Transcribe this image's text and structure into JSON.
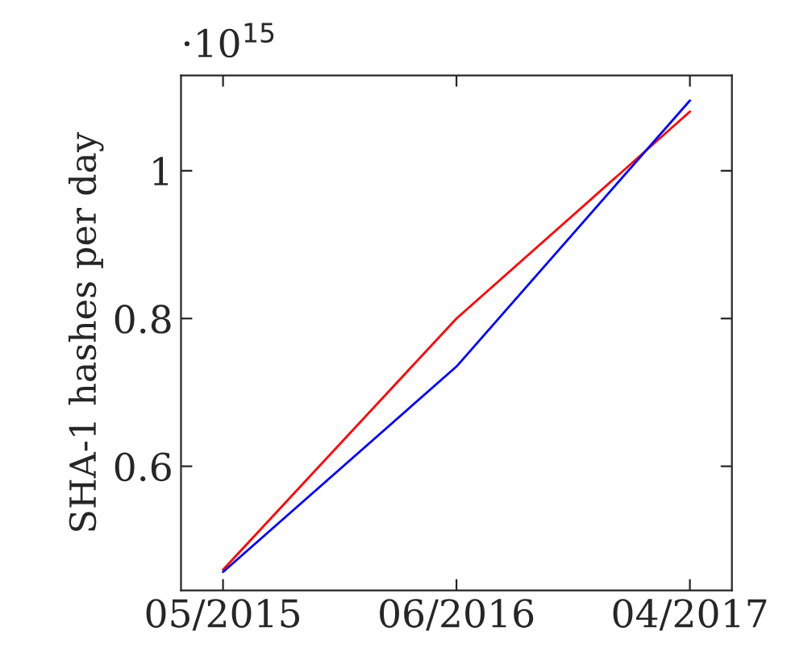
{
  "chart_data": {
    "type": "line",
    "ylabel": "SHA-1 hashes per day",
    "categories": [
      "05/2015",
      "06/2016",
      "04/2017"
    ],
    "series": [
      {
        "color": "#ff0000",
        "values": [
          0.46,
          0.8,
          1.08
        ]
      },
      {
        "color": "#0000ff",
        "values": [
          0.457,
          0.735,
          1.095
        ]
      }
    ],
    "ylim": [
      0.432,
      1.129
    ],
    "yticks": [
      0.6,
      0.8,
      1
    ],
    "annotations": [
      "·10$^{15}$"
    ],
    "grid": false,
    "legend": false,
    "marker": "none",
    "line_style": "solid"
  }
}
